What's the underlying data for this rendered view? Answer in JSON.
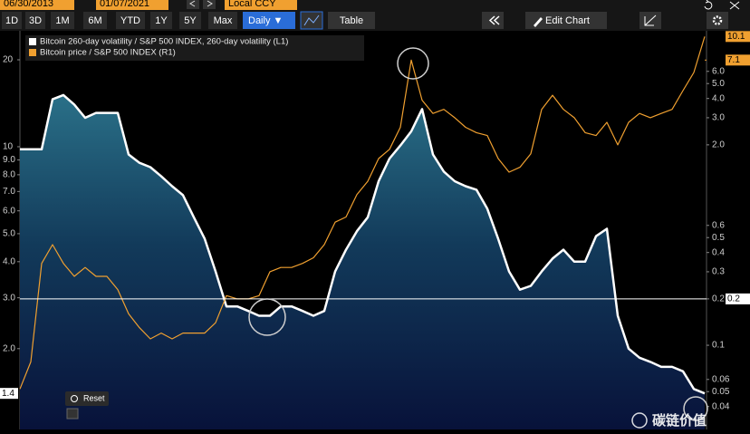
{
  "toolbar": {
    "start_date": "06/30/2013",
    "end_date": "01/07/2021",
    "currency": "Local CCY",
    "ranges": [
      "1D",
      "3D",
      "1M",
      "6M",
      "YTD",
      "1Y",
      "5Y",
      "Max"
    ],
    "frequency": "Daily ▼",
    "table": "Table",
    "edit_chart": "Edit Chart",
    "reset": "Reset"
  },
  "watermark": "碳链价值",
  "chart_data": {
    "type": "line",
    "log_scale": true,
    "ylim": [
      1.05,
      25.2
    ],
    "yticks": [
      20,
      10,
      {
        "value": 9,
        "label": "9.0"
      },
      {
        "value": 8,
        "label": "8.0"
      },
      {
        "value": 7,
        "label": "7.0"
      },
      {
        "value": 6,
        "label": "6.0"
      },
      {
        "value": 5,
        "label": "5.0"
      },
      {
        "value": 4,
        "label": "4.0"
      },
      {
        "value": 3,
        "label": "3.0"
      },
      {
        "value": 2,
        "label": "2.0"
      }
    ],
    "y2lim": [
      0.0284,
      11
    ],
    "y2ticks": [
      {
        "value": 6,
        "label": "6.0"
      },
      {
        "value": 5,
        "label": "5.0"
      },
      {
        "value": 4,
        "label": "4.0"
      },
      {
        "value": 3,
        "label": "3.0"
      },
      {
        "value": 2,
        "label": "2.0"
      },
      0.6,
      0.5,
      0.4,
      0.3,
      0.2,
      0.1,
      0.06,
      0.05,
      0.04
    ],
    "ytags": [
      {
        "value": 1.4,
        "label": "1.4",
        "color": "#ffffff"
      }
    ],
    "y2tags": [
      {
        "value": 10.1,
        "label": "10.1",
        "color": "#f0a030"
      },
      {
        "value": 7.1,
        "label": "7.1",
        "color": "#f0a030",
        "line": "from_peak"
      },
      {
        "value": 0.2,
        "label": "0.2",
        "color": "#ffffff",
        "line": "full"
      }
    ],
    "series": [
      {
        "name": "Bitcoin 260-day volatility / S&P 500 INDEX, 260-day volatility (L1)",
        "color": "#ffffff",
        "area": true,
        "values": [
          9.8,
          9.8,
          9.8,
          14.6,
          15.1,
          14.0,
          12.6,
          13.1,
          13.1,
          13.1,
          9.4,
          8.8,
          8.5,
          7.9,
          7.3,
          6.8,
          5.7,
          4.8,
          3.7,
          2.8,
          2.8,
          2.7,
          2.6,
          2.6,
          2.8,
          2.8,
          2.7,
          2.6,
          2.7,
          3.7,
          4.4,
          5.1,
          5.7,
          7.6,
          9.1,
          10.1,
          11.3,
          13.5,
          9.4,
          8.2,
          7.6,
          7.3,
          7.1,
          6.1,
          4.8,
          3.7,
          3.2,
          3.3,
          3.7,
          4.1,
          4.4,
          4.0,
          4.0,
          4.9,
          5.2,
          2.6,
          2.0,
          1.86,
          1.8,
          1.73,
          1.73,
          1.67,
          1.45,
          1.4
        ]
      },
      {
        "name": "Bitcoin price / S&P 500 INDEX (R1)",
        "color": "#f0a030",
        "axis": "y2",
        "values": [
          0.052,
          0.078,
          0.34,
          0.45,
          0.34,
          0.28,
          0.32,
          0.28,
          0.28,
          0.23,
          0.16,
          0.13,
          0.11,
          0.12,
          0.11,
          0.12,
          0.12,
          0.12,
          0.14,
          0.21,
          0.2,
          0.2,
          0.21,
          0.3,
          0.32,
          0.32,
          0.34,
          0.37,
          0.45,
          0.63,
          0.68,
          0.95,
          1.16,
          1.63,
          1.87,
          2.6,
          7.1,
          3.9,
          3.2,
          3.4,
          3.0,
          2.6,
          2.4,
          2.3,
          1.63,
          1.33,
          1.43,
          1.75,
          3.4,
          4.2,
          3.4,
          3.0,
          2.4,
          2.3,
          2.8,
          2.0,
          2.8,
          3.2,
          3.0,
          3.2,
          3.4,
          4.5,
          5.9,
          10.1
        ]
      }
    ]
  }
}
